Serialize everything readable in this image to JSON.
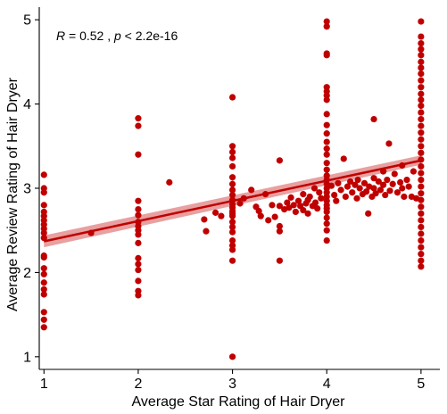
{
  "chart_data": {
    "type": "scatter",
    "xlabel": "Average Star Rating of Hair Dryer",
    "ylabel": "Average Review Rating of Hair Dryer",
    "xlim": [
      0.95,
      5.2
    ],
    "ylim": [
      0.85,
      5.15
    ],
    "x_ticks": [
      1,
      2,
      3,
      4,
      5
    ],
    "y_ticks": [
      1,
      2,
      3,
      4,
      5
    ],
    "x_tick_labels": [
      "1",
      "2",
      "3",
      "4",
      "5"
    ],
    "y_tick_labels": [
      "1",
      "2",
      "3",
      "4",
      "5"
    ],
    "annotation": {
      "r_label": "R",
      "r_text": " = 0.52 , ",
      "p_label": "p",
      "p_text": " < 2.2e-16"
    },
    "grid": false,
    "colors": {
      "points": "#c00000",
      "line": "#c00000",
      "band": "#e8a0a0"
    },
    "regression": {
      "x": [
        1,
        5
      ],
      "y": [
        2.37,
        3.33
      ],
      "ci_low": [
        2.3,
        3.28
      ],
      "ci_high": [
        2.44,
        3.39
      ]
    },
    "points": [
      [
        1,
        3.16
      ],
      [
        1,
        3.0
      ],
      [
        1,
        2.95
      ],
      [
        1,
        2.8
      ],
      [
        1,
        2.72
      ],
      [
        1,
        2.67
      ],
      [
        1,
        2.62
      ],
      [
        1,
        2.57
      ],
      [
        1,
        2.52
      ],
      [
        1,
        2.47
      ],
      [
        1,
        2.41
      ],
      [
        1,
        2.2
      ],
      [
        1,
        2.18
      ],
      [
        1,
        2.05
      ],
      [
        1,
        1.98
      ],
      [
        1,
        1.88
      ],
      [
        1,
        1.8
      ],
      [
        1,
        1.74
      ],
      [
        1,
        1.53
      ],
      [
        1,
        1.44
      ],
      [
        1,
        1.35
      ],
      [
        1.5,
        2.47
      ],
      [
        2,
        3.83
      ],
      [
        2,
        3.74
      ],
      [
        2,
        3.4
      ],
      [
        2,
        2.85
      ],
      [
        2,
        2.75
      ],
      [
        2,
        2.68
      ],
      [
        2,
        2.6
      ],
      [
        2,
        2.55
      ],
      [
        2,
        2.5
      ],
      [
        2,
        2.45
      ],
      [
        2,
        2.35
      ],
      [
        2,
        2.17
      ],
      [
        2,
        2.1
      ],
      [
        2,
        2.03
      ],
      [
        2,
        1.9
      ],
      [
        2,
        1.78
      ],
      [
        2,
        1.73
      ],
      [
        2.33,
        3.07
      ],
      [
        2.7,
        2.63
      ],
      [
        2.72,
        2.49
      ],
      [
        2.82,
        2.71
      ],
      [
        2.88,
        2.67
      ],
      [
        3,
        4.08
      ],
      [
        3,
        3.5
      ],
      [
        3,
        3.43
      ],
      [
        3,
        3.36
      ],
      [
        3,
        3.26
      ],
      [
        3,
        3.13
      ],
      [
        3,
        3.05
      ],
      [
        3,
        2.98
      ],
      [
        3,
        2.92
      ],
      [
        3,
        2.86
      ],
      [
        3,
        2.81
      ],
      [
        3,
        2.77
      ],
      [
        3,
        2.73
      ],
      [
        3,
        2.7
      ],
      [
        3,
        2.67
      ],
      [
        3,
        2.6
      ],
      [
        3,
        2.54
      ],
      [
        3,
        2.48
      ],
      [
        3,
        2.38
      ],
      [
        3,
        2.32
      ],
      [
        3,
        2.27
      ],
      [
        3,
        2.14
      ],
      [
        3,
        1.0
      ],
      [
        3.08,
        2.82
      ],
      [
        3.12,
        2.88
      ],
      [
        3.2,
        2.98
      ],
      [
        3.25,
        2.78
      ],
      [
        3.28,
        2.73
      ],
      [
        3.3,
        2.67
      ],
      [
        3.35,
        2.93
      ],
      [
        3.38,
        2.62
      ],
      [
        3.42,
        2.8
      ],
      [
        3.45,
        2.66
      ],
      [
        3.5,
        3.33
      ],
      [
        3.5,
        2.79
      ],
      [
        3.5,
        2.55
      ],
      [
        3.5,
        2.49
      ],
      [
        3.5,
        2.14
      ],
      [
        3.55,
        2.75
      ],
      [
        3.58,
        2.83
      ],
      [
        3.6,
        2.77
      ],
      [
        3.62,
        2.89
      ],
      [
        3.65,
        2.8
      ],
      [
        3.67,
        2.72
      ],
      [
        3.7,
        2.85
      ],
      [
        3.72,
        2.79
      ],
      [
        3.75,
        2.93
      ],
      [
        3.75,
        2.74
      ],
      [
        3.78,
        2.82
      ],
      [
        3.8,
        2.86
      ],
      [
        3.8,
        2.7
      ],
      [
        3.82,
        2.9
      ],
      [
        3.85,
        2.79
      ],
      [
        3.87,
        3.0
      ],
      [
        3.88,
        2.83
      ],
      [
        3.9,
        2.76
      ],
      [
        3.92,
        2.95
      ],
      [
        3.94,
        2.88
      ],
      [
        4,
        4.98
      ],
      [
        4,
        4.92
      ],
      [
        4,
        4.6
      ],
      [
        4,
        4.58
      ],
      [
        4,
        4.2
      ],
      [
        4,
        4.15
      ],
      [
        4,
        4.1
      ],
      [
        4,
        4.05
      ],
      [
        4,
        3.88
      ],
      [
        4,
        3.75
      ],
      [
        4,
        3.65
      ],
      [
        4,
        3.55
      ],
      [
        4,
        3.47
      ],
      [
        4,
        3.4
      ],
      [
        4,
        3.3
      ],
      [
        4,
        3.22
      ],
      [
        4,
        3.15
      ],
      [
        4,
        3.1
      ],
      [
        4,
        3.05
      ],
      [
        4,
        3.0
      ],
      [
        4,
        2.95
      ],
      [
        4,
        2.9
      ],
      [
        4,
        2.85
      ],
      [
        4,
        2.8
      ],
      [
        4,
        2.76
      ],
      [
        4,
        2.72
      ],
      [
        4,
        2.65
      ],
      [
        4,
        2.58
      ],
      [
        4,
        2.5
      ],
      [
        4,
        2.38
      ],
      [
        4.05,
        3.03
      ],
      [
        4.08,
        2.92
      ],
      [
        4.1,
        2.85
      ],
      [
        4.12,
        3.06
      ],
      [
        4.15,
        2.98
      ],
      [
        4.18,
        3.35
      ],
      [
        4.2,
        2.9
      ],
      [
        4.22,
        3.02
      ],
      [
        4.25,
        3.08
      ],
      [
        4.27,
        2.95
      ],
      [
        4.3,
        3.04
      ],
      [
        4.32,
        2.88
      ],
      [
        4.33,
        3.1
      ],
      [
        4.35,
        3.0
      ],
      [
        4.38,
        2.93
      ],
      [
        4.4,
        3.06
      ],
      [
        4.42,
        2.96
      ],
      [
        4.44,
        2.7
      ],
      [
        4.45,
        3.02
      ],
      [
        4.48,
        2.9
      ],
      [
        4.5,
        3.82
      ],
      [
        4.5,
        3.12
      ],
      [
        4.5,
        3.0
      ],
      [
        4.52,
        2.94
      ],
      [
        4.55,
        3.08
      ],
      [
        4.57,
        2.98
      ],
      [
        4.6,
        3.2
      ],
      [
        4.6,
        3.04
      ],
      [
        4.62,
        2.92
      ],
      [
        4.64,
        3.1
      ],
      [
        4.66,
        3.53
      ],
      [
        4.67,
        2.97
      ],
      [
        4.7,
        3.05
      ],
      [
        4.72,
        3.17
      ],
      [
        4.75,
        2.95
      ],
      [
        4.78,
        3.07
      ],
      [
        4.8,
        3.27
      ],
      [
        4.8,
        3.0
      ],
      [
        4.82,
        2.9
      ],
      [
        4.85,
        3.1
      ],
      [
        4.87,
        3.02
      ],
      [
        4.9,
        2.9
      ],
      [
        4.92,
        3.2
      ],
      [
        4.95,
        2.88
      ],
      [
        5,
        4.98
      ],
      [
        5,
        4.8
      ],
      [
        5,
        4.72
      ],
      [
        5,
        4.65
      ],
      [
        5,
        4.58
      ],
      [
        5,
        4.5
      ],
      [
        5,
        4.43
      ],
      [
        5,
        4.36
      ],
      [
        5,
        4.28
      ],
      [
        5,
        4.2
      ],
      [
        5,
        4.12
      ],
      [
        5,
        4.05
      ],
      [
        5,
        3.98
      ],
      [
        5,
        3.9
      ],
      [
        5,
        3.82
      ],
      [
        5,
        3.74
      ],
      [
        5,
        3.66
      ],
      [
        5,
        3.58
      ],
      [
        5,
        3.5
      ],
      [
        5,
        3.42
      ],
      [
        5,
        3.34
      ],
      [
        5,
        3.26
      ],
      [
        5,
        3.18
      ],
      [
        5,
        3.1
      ],
      [
        5,
        3.02
      ],
      [
        5,
        2.94
      ],
      [
        5,
        2.86
      ],
      [
        5,
        2.78
      ],
      [
        5,
        2.7
      ],
      [
        5,
        2.62
      ],
      [
        5,
        2.54
      ],
      [
        5,
        2.46
      ],
      [
        5,
        2.38
      ],
      [
        5,
        2.3
      ],
      [
        5,
        2.22
      ],
      [
        5,
        2.14
      ],
      [
        5,
        2.07
      ]
    ]
  }
}
